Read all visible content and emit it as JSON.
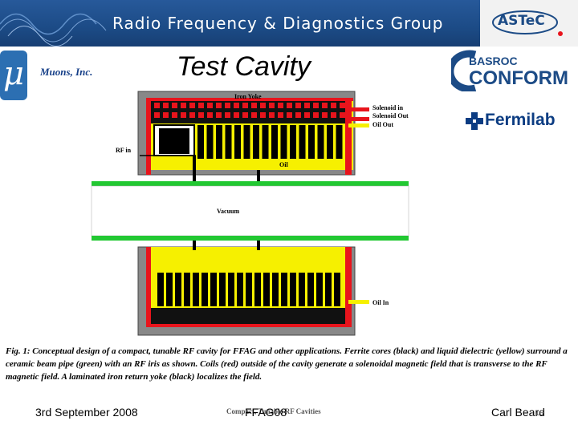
{
  "header": {
    "banner_title": "Radio Frequency & Diagnostics Group",
    "banner_logo": "ASTeC"
  },
  "logos": {
    "muons_symbol": "μ",
    "muons_text": "Muons, Inc.",
    "basroc_top": "BASROC",
    "basroc_bottom": "CONFORM",
    "fermilab": "Fermilab"
  },
  "slide": {
    "title": "Test Cavity"
  },
  "diagram": {
    "labels": {
      "iron_yoke": "Iron Yoke",
      "solenoid_in": "Solenoid in",
      "solenoid_out": "Solenoid Out",
      "oil_out": "Oil Out",
      "rf_in": "RF in",
      "oil": "Oil",
      "vacuum": "Vacuum",
      "oil_in": "Oil In"
    }
  },
  "caption": {
    "text": "Fig. 1:  Conceptual design of a compact, tunable RF cavity for FFAG and other applications. Ferrite cores (black) and liquid dielectric (yellow) surround a ceramic beam pipe (green) with an RF iris as shown.  Coils (red) outside of the cavity generate a solenoidal magnetic field that is transverse to the RF magnetic field.  A laminated iron return yoke (black) localizes the field."
  },
  "footer": {
    "date": "3rd September 2008",
    "date_overlay": "3rd Sep...",
    "event": "FFAG08",
    "event_overlay": "Compact, Tunable RF Cavities",
    "author": "Carl Beard",
    "page": "16"
  },
  "colors": {
    "banner": "#1c4b86",
    "coil_red": "#e8141c",
    "ferrite_black": "#000000",
    "dielectric_yellow": "#f6f000",
    "beam_pipe_green": "#22c832",
    "yoke_grey": "#808080"
  }
}
